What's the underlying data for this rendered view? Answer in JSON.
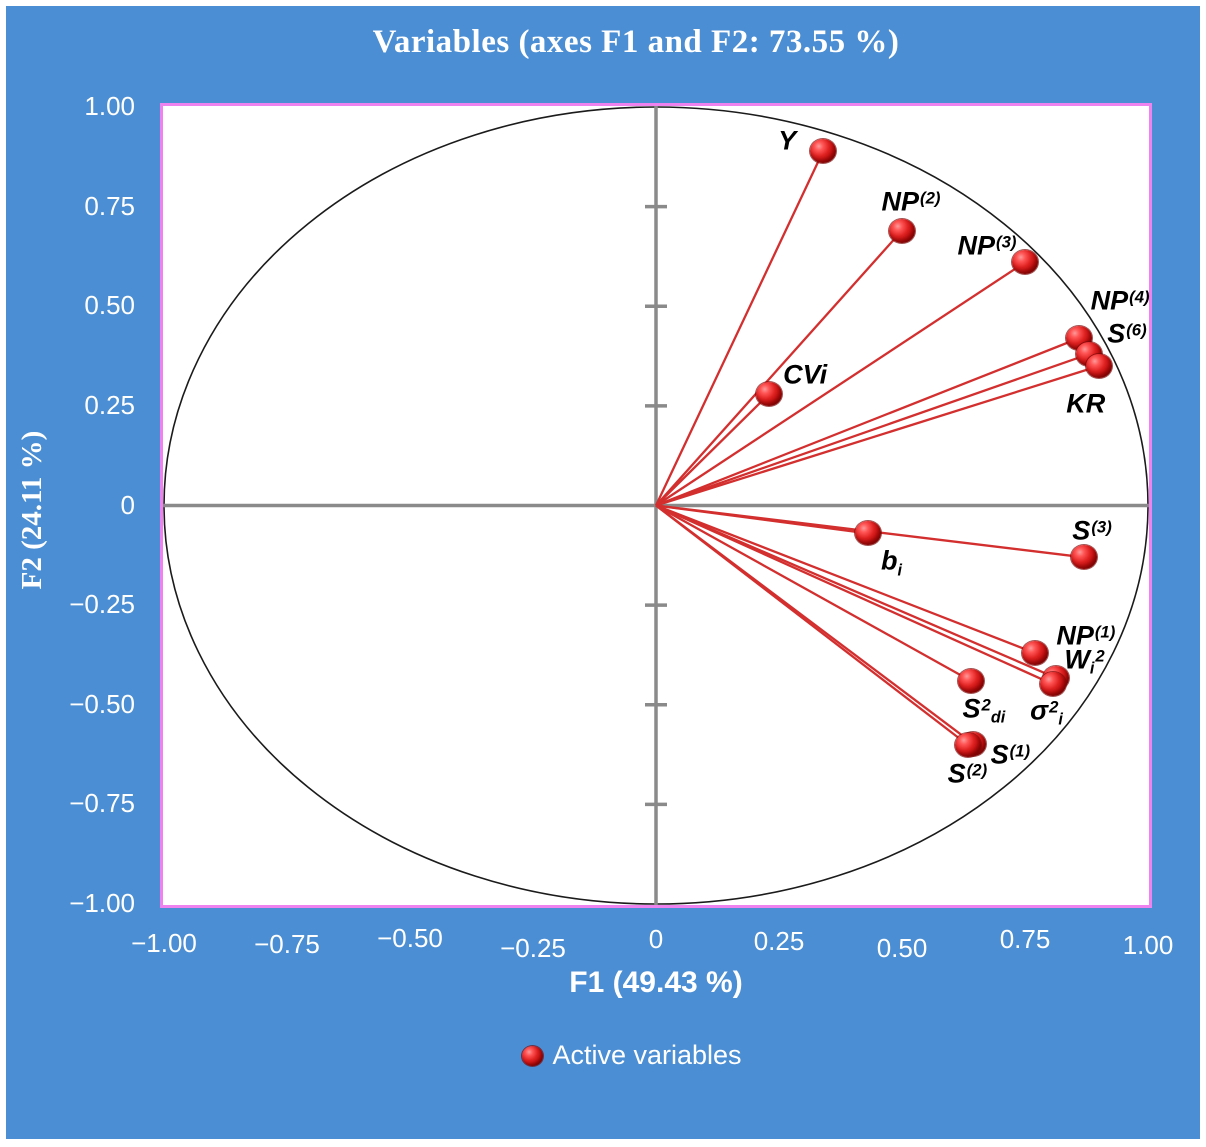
{
  "colors": {
    "background_blue": "#4b8ed3",
    "plot_background": "#ffffff",
    "plot_border_pink": "#ee82ee",
    "axis_gray": "#8a8a8a",
    "circle_black": "#1b1b1b",
    "vector_red": "#d32f2f",
    "marker_red": "#cc1111",
    "text_light": "#ffffff",
    "text_dark": "#000000"
  },
  "legend": {
    "marker": "red-sphere-icon",
    "label": "Active variables"
  },
  "chart_data": {
    "type": "scatter",
    "subtype": "pca-correlation-circle",
    "title": "Variables (axes F1 and F2: 73.55 %)",
    "xlabel": "F1 (49.43 %)",
    "ylabel": "F2 (24.11 %)",
    "xlim": [
      -1.0,
      1.0
    ],
    "ylim": [
      -1.0,
      1.0
    ],
    "x_ticks": [
      -1.0,
      -0.75,
      -0.5,
      -0.25,
      0,
      0.25,
      0.5,
      0.75,
      1.0
    ],
    "y_ticks": [
      1.0,
      0.75,
      0.5,
      0.25,
      0,
      -0.25,
      -0.5,
      -0.75,
      -1.0
    ],
    "x_tick_labels": [
      "−1.00",
      "−0.75",
      "−0.50",
      "−0.25",
      "0",
      "0.25",
      "0.50",
      "0.75",
      "1.00"
    ],
    "y_tick_labels": [
      "1.00",
      "0.75",
      "0.50",
      "0.25",
      "0",
      "−0.25",
      "−0.50",
      "−0.75",
      "−1.00"
    ],
    "unit_circle": true,
    "axes_cross_at_origin": true,
    "grid": false,
    "legend_position": "bottom-center",
    "series": [
      {
        "name": "Active variables",
        "points": [
          {
            "name": "Y",
            "x": 0.34,
            "y": 0.89,
            "label": [
              {
                "t": "Y"
              }
            ],
            "label_dx": -36,
            "label_dy": -10
          },
          {
            "name": "NP2",
            "x": 0.5,
            "y": 0.69,
            "label": [
              {
                "t": "NP"
              },
              {
                "t": "(2)",
                "s": "sup"
              }
            ],
            "label_dx": 9,
            "label_dy": -29
          },
          {
            "name": "NP3",
            "x": 0.75,
            "y": 0.61,
            "label": [
              {
                "t": "NP"
              },
              {
                "t": "(3)",
                "s": "sup"
              }
            ],
            "label_dx": -38,
            "label_dy": -16
          },
          {
            "name": "NP4",
            "x": 0.86,
            "y": 0.42,
            "label": [
              {
                "t": "NP"
              },
              {
                "t": "(4)",
                "s": "sup"
              }
            ],
            "label_dx": 41,
            "label_dy": -37
          },
          {
            "name": "S6",
            "x": 0.88,
            "y": 0.38,
            "label": [
              {
                "t": "S"
              },
              {
                "t": "(6)",
                "s": "sup"
              }
            ],
            "label_dx": 38,
            "label_dy": -20
          },
          {
            "name": "KR",
            "x": 0.9,
            "y": 0.35,
            "label": [
              {
                "t": "KR"
              }
            ],
            "label_dx": -13,
            "label_dy": 38
          },
          {
            "name": "CVi",
            "x": 0.23,
            "y": 0.28,
            "label": [
              {
                "t": "CVi"
              }
            ],
            "label_dx": 36,
            "label_dy": -19
          },
          {
            "name": "bi",
            "x": 0.43,
            "y": -0.07,
            "label": [
              {
                "t": "b"
              },
              {
                "t": "i",
                "s": "sub"
              }
            ],
            "label_dx": 24,
            "label_dy": 28
          },
          {
            "name": "S3",
            "x": 0.87,
            "y": -0.13,
            "label": [
              {
                "t": "S"
              },
              {
                "t": "(3)",
                "s": "sup"
              }
            ],
            "label_dx": 8,
            "label_dy": -26
          },
          {
            "name": "NP1",
            "x": 0.77,
            "y": -0.37,
            "label": [
              {
                "t": "NP"
              },
              {
                "t": "(1)",
                "s": "sup"
              }
            ],
            "label_dx": 51,
            "label_dy": -17
          },
          {
            "name": "Wi2",
            "x": 0.812,
            "y": -0.432,
            "label": [
              {
                "t": "W"
              },
              {
                "t": "i",
                "s": "sub"
              },
              {
                "t": "2",
                "s": "sup"
              }
            ],
            "label_dx": 29,
            "label_dy": -18
          },
          {
            "name": "sigma2i",
            "x": 0.806,
            "y": -0.448,
            "label": [
              {
                "t": "σ"
              },
              {
                "t": "2",
                "s": "sup"
              },
              {
                "t": "i",
                "s": "sub"
              }
            ],
            "label_dx": -6,
            "label_dy": 27
          },
          {
            "name": "S2di",
            "x": 0.64,
            "y": -0.44,
            "label": [
              {
                "t": "S"
              },
              {
                "t": "2",
                "s": "sup"
              },
              {
                "t": "di",
                "s": "sub"
              }
            ],
            "label_dx": 13,
            "label_dy": 28
          },
          {
            "name": "S1",
            "x": 0.645,
            "y": -0.598,
            "label": [
              {
                "t": "S"
              },
              {
                "t": "(1)",
                "s": "sup"
              }
            ],
            "label_dx": 37,
            "label_dy": 11
          },
          {
            "name": "S2",
            "x": 0.635,
            "y": -0.602,
            "label": [
              {
                "t": "S"
              },
              {
                "t": "(2)",
                "s": "sup"
              }
            ],
            "label_dx": -1,
            "label_dy": 29
          }
        ]
      }
    ]
  }
}
